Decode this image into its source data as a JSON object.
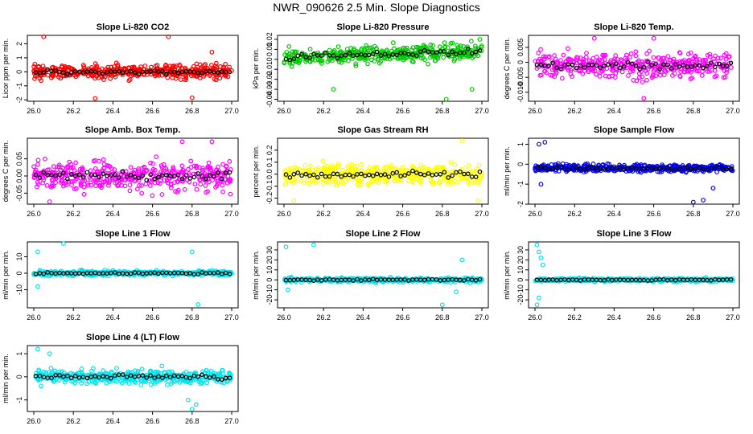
{
  "page": {
    "title": "NWR_090626  2.5 Min. Slope Diagnostics"
  },
  "chart_data": [
    {
      "type": "scatter",
      "title": "Slope Li-820 CO2",
      "ylabel": "Licor ppm per min.",
      "xlim": [
        26.0,
        27.0
      ],
      "ylim": [
        -2.1,
        2.6
      ],
      "xticks": [
        26.0,
        26.2,
        26.4,
        26.6,
        26.8,
        27.0
      ],
      "xtick_labels": [
        "26.0",
        "26.2",
        "26.4",
        "26.6",
        "26.8",
        "27.0"
      ],
      "yticks": [
        -2,
        -1,
        0,
        1,
        2
      ],
      "ytick_labels": [
        "-2",
        "-1",
        "0",
        "1",
        "2"
      ],
      "color": "#ff0000",
      "center": 0.0,
      "spread": 0.45,
      "outliers": [
        [
          26.05,
          2.5
        ],
        [
          26.31,
          -1.9
        ],
        [
          26.68,
          2.5
        ],
        [
          26.8,
          -1.85
        ],
        [
          26.9,
          1.4
        ]
      ]
    },
    {
      "type": "scatter",
      "title": "Slope Li-820 Pressure",
      "ylabel": "kPa per min.",
      "xlim": [
        26.0,
        27.0
      ],
      "ylim": [
        -0.042,
        0.024
      ],
      "xticks": [
        26.0,
        26.2,
        26.4,
        26.6,
        26.8,
        27.0
      ],
      "xtick_labels": [
        "26.0",
        "26.2",
        "26.4",
        "26.6",
        "26.8",
        "27.0"
      ],
      "yticks": [
        -0.04,
        -0.03,
        -0.02,
        -0.01,
        0.0,
        0.01,
        0.02
      ],
      "ytick_labels": [
        "-0.04",
        "-0.03",
        "-0.02",
        "-0.01",
        "0",
        "0.01",
        "0.02"
      ],
      "color": "#00c800",
      "center": 0.002,
      "spread": 0.008,
      "trend": 0.006,
      "outliers": [
        [
          26.25,
          -0.03
        ],
        [
          26.82,
          -0.04
        ],
        [
          26.95,
          -0.03
        ],
        [
          26.99,
          0.02
        ]
      ]
    },
    {
      "type": "scatter",
      "title": "Slope Li-820 Temp.",
      "ylabel": "degrees C per min.",
      "xlim": [
        26.0,
        27.0
      ],
      "ylim": [
        -0.013,
        0.009
      ],
      "xticks": [
        26.0,
        26.2,
        26.4,
        26.6,
        26.8,
        27.0
      ],
      "xtick_labels": [
        "26.0",
        "26.2",
        "26.4",
        "26.6",
        "26.8",
        "27.0"
      ],
      "yticks": [
        -0.01,
        -0.005,
        0.0,
        0.005
      ],
      "ytick_labels": [
        "-0.010",
        "-0.005",
        "0",
        "0.005"
      ],
      "color": "#ff00ff",
      "center": -0.001,
      "spread": 0.004,
      "outliers": [
        [
          26.3,
          0.008
        ],
        [
          26.6,
          0.008
        ],
        [
          26.55,
          -0.012
        ]
      ]
    },
    {
      "type": "scatter",
      "title": "Slope Amb. Box Temp.",
      "ylabel": "degrees C per min.",
      "xlim": [
        26.0,
        27.0
      ],
      "ylim": [
        -0.082,
        0.11
      ],
      "xticks": [
        26.0,
        26.2,
        26.4,
        26.6,
        26.8,
        27.0
      ],
      "xtick_labels": [
        "26.0",
        "26.2",
        "26.4",
        "26.6",
        "26.8",
        "27.0"
      ],
      "yticks": [
        -0.05,
        0.0,
        0.05
      ],
      "ytick_labels": [
        "-0.05",
        "0.00",
        "0.05"
      ],
      "color": "#ff00ff",
      "center": 0.0,
      "spread": 0.04,
      "outliers": [
        [
          26.08,
          -0.075
        ],
        [
          26.75,
          0.1
        ],
        [
          26.9,
          0.1
        ]
      ]
    },
    {
      "type": "scatter",
      "title": "Slope Gas Stream RH",
      "ylabel": "percent per min.",
      "xlim": [
        26.0,
        27.0
      ],
      "ylim": [
        -0.25,
        0.3
      ],
      "xticks": [
        26.0,
        26.2,
        26.4,
        26.6,
        26.8,
        27.0
      ],
      "xtick_labels": [
        "26.0",
        "26.2",
        "26.4",
        "26.6",
        "26.8",
        "27.0"
      ],
      "yticks": [
        -0.2,
        -0.1,
        0.0,
        0.1,
        0.2
      ],
      "ytick_labels": [
        "-0.2",
        "-0.1",
        "0.0",
        "0.1",
        "0.2"
      ],
      "color": "#ffff00",
      "center": 0.0,
      "spread": 0.08,
      "outliers": [
        [
          26.9,
          0.28
        ],
        [
          26.05,
          -0.22
        ],
        [
          26.98,
          -0.22
        ]
      ]
    },
    {
      "type": "scatter",
      "title": "Slope Sample Flow",
      "ylabel": "ml/min per min.",
      "xlim": [
        26.0,
        27.0
      ],
      "ylim": [
        -2.0,
        1.3
      ],
      "xticks": [
        26.0,
        26.2,
        26.4,
        26.6,
        26.8,
        27.0
      ],
      "xtick_labels": [
        "26.0",
        "26.2",
        "26.4",
        "26.6",
        "26.8",
        "27.0"
      ],
      "yticks": [
        -2,
        -1,
        0,
        1
      ],
      "ytick_labels": [
        "-2",
        "-1",
        "0",
        "1"
      ],
      "color": "#0000ff",
      "center": -0.2,
      "spread": 0.18,
      "outliers": [
        [
          26.02,
          1.0
        ],
        [
          26.05,
          1.1
        ],
        [
          26.8,
          -1.9
        ],
        [
          26.85,
          -1.8
        ],
        [
          26.9,
          -1.2
        ],
        [
          26.03,
          -1.0
        ]
      ]
    },
    {
      "type": "scatter",
      "title": "Slope Line 1 Flow",
      "ylabel": "ml/min per min.",
      "xlim": [
        26.0,
        27.0
      ],
      "ylim": [
        -21.0,
        19.0
      ],
      "xticks": [
        26.0,
        26.2,
        26.4,
        26.6,
        26.8,
        27.0
      ],
      "xtick_labels": [
        "26.0",
        "26.2",
        "26.4",
        "26.6",
        "26.8",
        "27.0"
      ],
      "yticks": [
        -10,
        0,
        10
      ],
      "ytick_labels": [
        "-10",
        "0",
        "10"
      ],
      "color": "#00e5ee",
      "center": 0.0,
      "spread": 1.4,
      "outliers": [
        [
          26.02,
          13
        ],
        [
          26.15,
          18
        ],
        [
          26.8,
          13
        ],
        [
          26.83,
          -19
        ],
        [
          26.02,
          -8
        ]
      ]
    },
    {
      "type": "scatter",
      "title": "Slope Line 2 Flow",
      "ylabel": "ml/min per min.",
      "xlim": [
        26.0,
        27.0
      ],
      "ylim": [
        -28.0,
        38.0
      ],
      "xticks": [
        26.0,
        26.2,
        26.4,
        26.6,
        26.8,
        27.0
      ],
      "xtick_labels": [
        "26.0",
        "26.2",
        "26.4",
        "26.6",
        "26.8",
        "27.0"
      ],
      "yticks": [
        -20,
        -10,
        0,
        10,
        20,
        30
      ],
      "ytick_labels": [
        "-20",
        "-10",
        "0",
        "10",
        "20",
        "30"
      ],
      "color": "#00e5ee",
      "center": 0.0,
      "spread": 2.0,
      "outliers": [
        [
          26.01,
          33
        ],
        [
          26.15,
          35
        ],
        [
          26.02,
          -10
        ],
        [
          26.9,
          20
        ],
        [
          26.87,
          -12
        ],
        [
          26.8,
          -25
        ]
      ]
    },
    {
      "type": "scatter",
      "title": "Slope Line 3 Flow",
      "ylabel": "ml/min per min.",
      "xlim": [
        26.0,
        27.0
      ],
      "ylim": [
        -28.0,
        38.0
      ],
      "xticks": [
        26.0,
        26.2,
        26.4,
        26.6,
        26.8,
        27.0
      ],
      "xtick_labels": [
        "26.0",
        "26.2",
        "26.4",
        "26.6",
        "26.8",
        "27.0"
      ],
      "yticks": [
        -20,
        -10,
        0,
        10,
        20,
        30
      ],
      "ytick_labels": [
        "-20",
        "-10",
        "0",
        "10",
        "20",
        "30"
      ],
      "color": "#00e5ee",
      "center": 0.0,
      "spread": 1.6,
      "outliers": [
        [
          26.01,
          35
        ],
        [
          26.02,
          28
        ],
        [
          26.03,
          22
        ],
        [
          26.01,
          -25
        ],
        [
          26.02,
          -18
        ],
        [
          26.04,
          15
        ]
      ]
    },
    {
      "type": "scatter",
      "title": "Slope Line 4 (LT) Flow",
      "ylabel": "ml/min per min.",
      "xlim": [
        26.0,
        27.0
      ],
      "ylim": [
        -1.5,
        1.35
      ],
      "xticks": [
        26.0,
        26.2,
        26.4,
        26.6,
        26.8,
        27.0
      ],
      "xtick_labels": [
        "26.0",
        "26.2",
        "26.4",
        "26.6",
        "26.8",
        "27.0"
      ],
      "yticks": [
        -1,
        0,
        1
      ],
      "ytick_labels": [
        "-1",
        "0",
        "1"
      ],
      "color": "#00e5ee",
      "center": 0.0,
      "spread": 0.3,
      "outliers": [
        [
          26.02,
          1.2
        ],
        [
          26.08,
          1.0
        ],
        [
          26.8,
          -1.4
        ],
        [
          26.82,
          -1.2
        ],
        [
          26.78,
          -1.0
        ]
      ]
    }
  ]
}
